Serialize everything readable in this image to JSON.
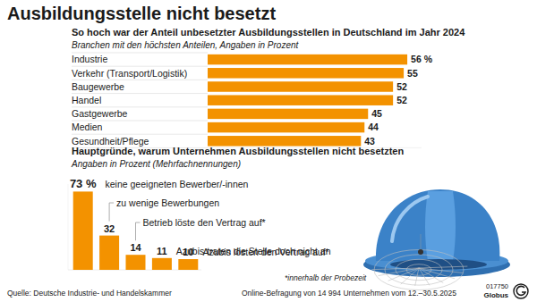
{
  "header": {
    "title": "Ausbildungsstelle nicht besetzt"
  },
  "chart_data": [
    {
      "type": "bar",
      "orientation": "horizontal",
      "title": "So hoch war der Anteil unbesetzter Ausbildungsstellen in Deutschland im Jahr 2024",
      "subtitle": "Branchen mit den höchsten Anteilen, Angaben in Prozent",
      "categories": [
        "Industrie",
        "Verkehr (Transport/Logistik)",
        "Baugewerbe",
        "Handel",
        "Gastgewerbe",
        "Medien",
        "Gesundheit/Pflege"
      ],
      "values": [
        56,
        55,
        52,
        52,
        45,
        44,
        43
      ],
      "value_labels": [
        "56 %",
        "55",
        "52",
        "52",
        "45",
        "44",
        "43"
      ],
      "color": "#f39200",
      "xlim": [
        0,
        60
      ],
      "data_labels": true,
      "tick_labels": "y",
      "grid": false
    },
    {
      "type": "bar",
      "title": "Hauptgründe, warum Unternehmen Ausbildungsstellen nicht besetzten",
      "subtitle": "Angaben in Prozent (Mehrfachnennungen)",
      "categories": [
        "keine geeigneten Bewerber/-innen",
        "zu wenige Bewerbungen",
        "Betrieb löste den Vertrag auf*",
        "Azubis traten die Stelle doch nicht an",
        "Azubis lösten den Vertrag auf*"
      ],
      "values": [
        73,
        32,
        14,
        11,
        10
      ],
      "value_labels": [
        "73 %",
        "32",
        "14",
        "11",
        "10"
      ],
      "color": "#f39200",
      "ylim": [
        0,
        80
      ],
      "data_labels": true,
      "tick_labels": "x",
      "grid": false,
      "annotations": [
        "*innerhalb der Probezeit"
      ]
    }
  ],
  "footer": {
    "source": "Quelle: Deutsche Industrie- und Handelskammer",
    "survey": "Online-Befragung von 14 994 Unternehmen vom 12.–30.5.2025",
    "code": "017750",
    "brand": "Globus"
  }
}
